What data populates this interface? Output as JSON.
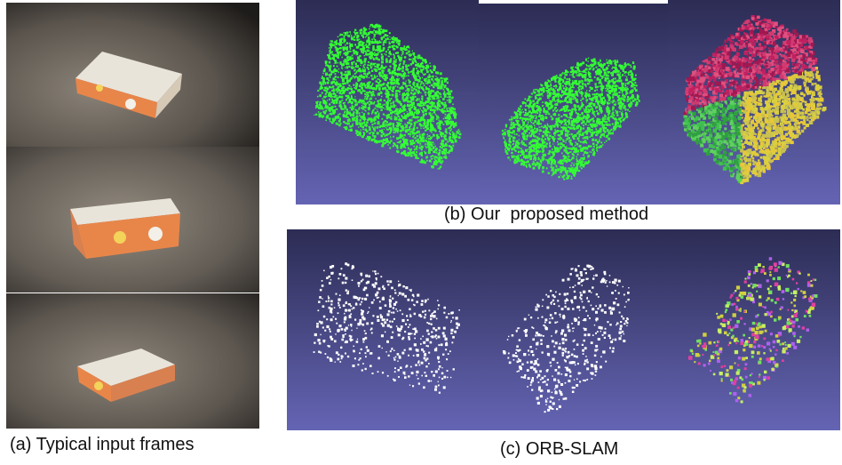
{
  "captions": {
    "a": "(a) Typical input frames",
    "b": "(b) Our  proposed method",
    "c": "(c) ORB-SLAM"
  },
  "colors": {
    "viewer_bg_top": "#2c2c54",
    "viewer_bg_bottom": "#6464b4",
    "carpet": "#5a5550",
    "box_orange": "#e8864a",
    "box_top": "#e9e4da",
    "dense_points": "#33ff33",
    "sparse_points": "#ffffff"
  },
  "figure": {
    "frames": [
      "input-frame-1",
      "input-frame-2",
      "input-frame-3"
    ],
    "dense_views": [
      "dense-green-view-1",
      "dense-green-view-2",
      "dense-colored-view"
    ],
    "sparse_views": [
      "sparse-white-view-1",
      "sparse-white-view-2",
      "sparse-colored-view"
    ]
  }
}
